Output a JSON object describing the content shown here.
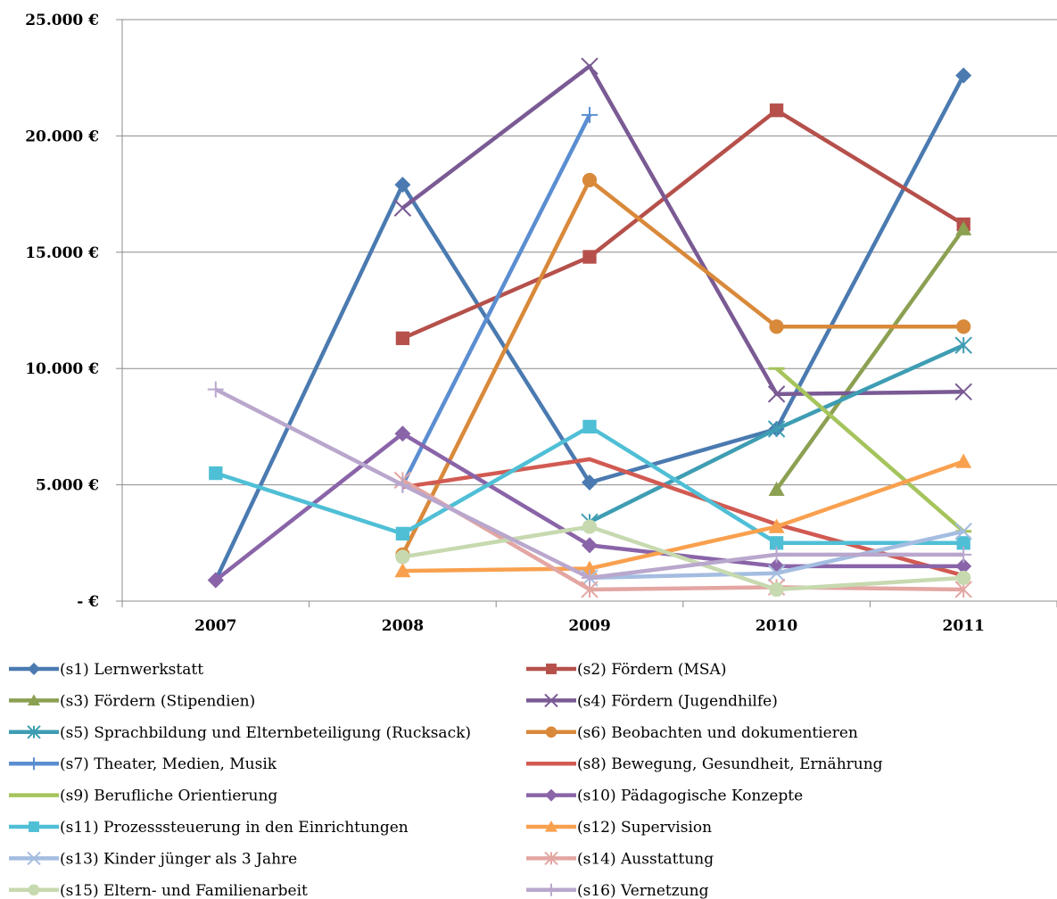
{
  "chart_data": {
    "type": "line",
    "title": "",
    "xlabel": "",
    "ylabel": "",
    "categories": [
      "2007",
      "2008",
      "2009",
      "2010",
      "2011"
    ],
    "y_tick_labels": [
      "- €",
      "5.000 €",
      "10.000 €",
      "15.000 €",
      "20.000 €",
      "25.000 €"
    ],
    "ylim": [
      0,
      25000
    ],
    "grid": "horizontal",
    "legend_position": "bottom",
    "series": [
      {
        "name": "(s1)  Lernwerkstatt",
        "color": "#4a7ab0",
        "marker": "diamond",
        "values": [
          900,
          17900,
          5100,
          7400,
          22600
        ]
      },
      {
        "name": "(s2)  Fördern (MSA)",
        "color": "#b5504b",
        "marker": "square",
        "values": [
          null,
          11300,
          14800,
          21100,
          16200
        ]
      },
      {
        "name": "(s3)  Fördern (Stipendien)",
        "color": "#8ca052",
        "marker": "triangle",
        "values": [
          null,
          null,
          null,
          4800,
          16000
        ]
      },
      {
        "name": "(s4)  Fördern (Jugendhilfe)",
        "color": "#7a5a94",
        "marker": "x",
        "values": [
          null,
          16900,
          23000,
          8900,
          9000
        ]
      },
      {
        "name": "(s5)  Sprachbildung und Elternbeteiligung (Rucksack)",
        "color": "#3e9db3",
        "marker": "star",
        "values": [
          null,
          null,
          3400,
          7400,
          11000
        ]
      },
      {
        "name": "(s6)  Beobachten und dokumentieren",
        "color": "#d9893a",
        "marker": "circle",
        "values": [
          null,
          2000,
          18100,
          11800,
          11800
        ]
      },
      {
        "name": "(s7)  Theater, Medien, Musik",
        "color": "#5b8ed1",
        "marker": "plus",
        "values": [
          null,
          5000,
          20900,
          null,
          null
        ]
      },
      {
        "name": "(s8)  Bewegung, Gesundheit, Ernährung",
        "color": "#d15a52",
        "marker": "none",
        "values": [
          null,
          4900,
          6100,
          3300,
          1100
        ]
      },
      {
        "name": "(s9)  Berufliche Orientierung",
        "color": "#a5c45c",
        "marker": "dash",
        "values": [
          null,
          null,
          null,
          10000,
          3000
        ]
      },
      {
        "name": "(s10)  Pädagogische Konzepte",
        "color": "#8a64a8",
        "marker": "diamond",
        "values": [
          900,
          7200,
          2400,
          1500,
          1500
        ]
      },
      {
        "name": "(s11)  Prozesssteuerung in den Einrichtungen",
        "color": "#4fbfd6",
        "marker": "square",
        "values": [
          5500,
          2900,
          7500,
          2500,
          2500
        ]
      },
      {
        "name": "(s12)  Supervision",
        "color": "#f9a04e",
        "marker": "triangle",
        "values": [
          null,
          1300,
          1400,
          3200,
          6000
        ]
      },
      {
        "name": "(s13)  Kinder jünger als 3 Jahre",
        "color": "#a4bde0",
        "marker": "x",
        "values": [
          null,
          null,
          1000,
          1200,
          3000
        ]
      },
      {
        "name": "(s14)  Ausstattung",
        "color": "#e3a6a2",
        "marker": "star",
        "values": [
          null,
          5200,
          500,
          600,
          500
        ]
      },
      {
        "name": "(s15)  Eltern- und Familienarbeit",
        "color": "#c7d9af",
        "marker": "circle",
        "values": [
          null,
          1900,
          3200,
          500,
          1000
        ]
      },
      {
        "name": "(s16)  Vernetzung",
        "color": "#b9a7cd",
        "marker": "plus",
        "values": [
          9100,
          5000,
          1000,
          2000,
          2000
        ]
      }
    ]
  }
}
